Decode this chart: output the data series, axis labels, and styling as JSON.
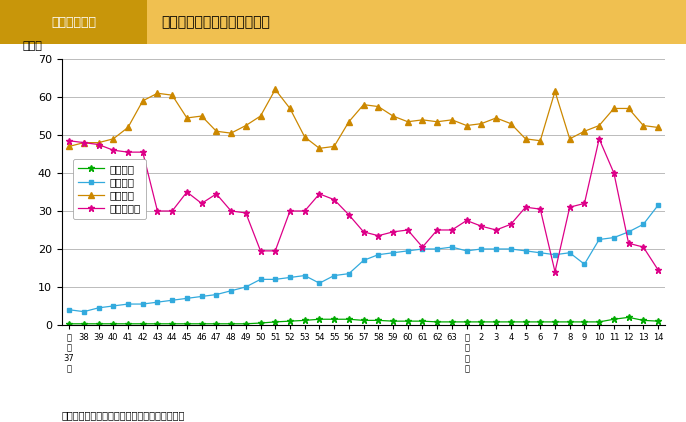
{
  "title_left": "図２－３－１",
  "title_right": "防災関係予算内訳割合の推移",
  "ylabel": "(%)",
  "note": "注）各省庁資料を基に，内閣府において作成。",
  "ylim": [
    0,
    70
  ],
  "yticks": [
    0,
    10,
    20,
    30,
    40,
    50,
    60,
    70
  ],
  "x_labels_short": [
    "昭\n和\n37\n年",
    "38",
    "39",
    "40",
    "41",
    "42",
    "43",
    "44",
    "45",
    "46",
    "47",
    "48",
    "49",
    "50",
    "51",
    "52",
    "53",
    "54",
    "55",
    "56",
    "57",
    "58",
    "59",
    "60",
    "61",
    "62",
    "63",
    "平\n成\n元\n年",
    "2",
    "3",
    "4",
    "5",
    "6",
    "7",
    "8",
    "9",
    "10",
    "11",
    "12",
    "13",
    "14"
  ],
  "x_tick_display": [
    "昭\n和\n37\n年",
    "38",
    "39",
    "40",
    "41",
    "42",
    "43",
    "44",
    "45",
    "46",
    "47",
    "48",
    "49",
    "50",
    "51",
    "52",
    "53",
    "54",
    "55",
    "56",
    "57",
    "58",
    "59",
    "60",
    "61",
    "62",
    "63",
    "平\n成\n元\n年",
    "2",
    "3",
    "4",
    "5",
    "6",
    "7",
    "8",
    "9",
    "10",
    "11",
    "12",
    "13",
    "14"
  ],
  "heisei_idx": 27,
  "showa37_idx": 0,
  "series_order": [
    "科学技術",
    "災害予防",
    "国土保全",
    "災害復旧等"
  ],
  "colors": {
    "科学技術": "#00aa00",
    "災害予防": "#33aadd",
    "国土保全": "#cc8800",
    "災害復旧等": "#dd0088"
  },
  "markers": {
    "科学技術": "*",
    "災害予防": "s",
    "国土保全": "^",
    "災害復旧等": "*"
  },
  "data": {
    "科学技術": [
      0.3,
      0.3,
      0.3,
      0.3,
      0.3,
      0.3,
      0.3,
      0.3,
      0.3,
      0.3,
      0.3,
      0.3,
      0.3,
      0.5,
      0.8,
      1.0,
      1.2,
      1.5,
      1.5,
      1.5,
      1.2,
      1.2,
      1.0,
      1.0,
      1.0,
      0.8,
      0.8,
      0.8,
      0.8,
      0.8,
      0.8,
      0.8,
      0.8,
      0.8,
      0.8,
      0.8,
      0.8,
      1.5,
      2.0,
      1.2,
      1.0
    ],
    "災害予防": [
      4.0,
      3.5,
      4.5,
      5.0,
      5.5,
      5.5,
      6.0,
      6.5,
      7.0,
      7.5,
      8.0,
      9.0,
      10.0,
      12.0,
      12.0,
      12.5,
      13.0,
      11.0,
      13.0,
      13.5,
      17.0,
      18.5,
      19.0,
      19.5,
      20.0,
      20.0,
      20.5,
      19.5,
      20.0,
      20.0,
      20.0,
      19.5,
      19.0,
      18.5,
      19.0,
      16.0,
      22.5,
      23.0,
      24.5,
      26.5,
      31.5
    ],
    "国土保全": [
      47.0,
      48.0,
      48.0,
      49.0,
      52.0,
      59.0,
      61.0,
      60.5,
      54.5,
      55.0,
      51.0,
      50.5,
      52.5,
      55.0,
      62.0,
      57.0,
      49.5,
      46.5,
      47.0,
      53.5,
      58.0,
      57.5,
      55.0,
      53.5,
      54.0,
      53.5,
      54.0,
      52.5,
      53.0,
      54.5,
      53.0,
      49.0,
      48.5,
      61.5,
      49.0,
      51.0,
      52.5,
      57.0,
      57.0,
      52.5,
      52.0
    ],
    "災害復旧等": [
      48.5,
      48.0,
      47.5,
      46.0,
      45.5,
      45.5,
      30.0,
      30.0,
      35.0,
      32.0,
      34.5,
      30.0,
      29.5,
      19.5,
      19.5,
      30.0,
      30.0,
      34.5,
      33.0,
      29.0,
      24.5,
      23.5,
      24.5,
      25.0,
      20.5,
      25.0,
      25.0,
      27.5,
      26.0,
      25.0,
      26.5,
      31.0,
      30.5,
      14.0,
      31.0,
      32.0,
      49.0,
      40.0,
      21.5,
      20.5,
      14.5
    ]
  },
  "title_bg": "#f0c050",
  "title_left_bg": "#c8960a",
  "title_left_color": "#ffffff",
  "title_right_color": "#000000",
  "grid_color": "#bbbbbb",
  "legend_border_color": "#999999"
}
